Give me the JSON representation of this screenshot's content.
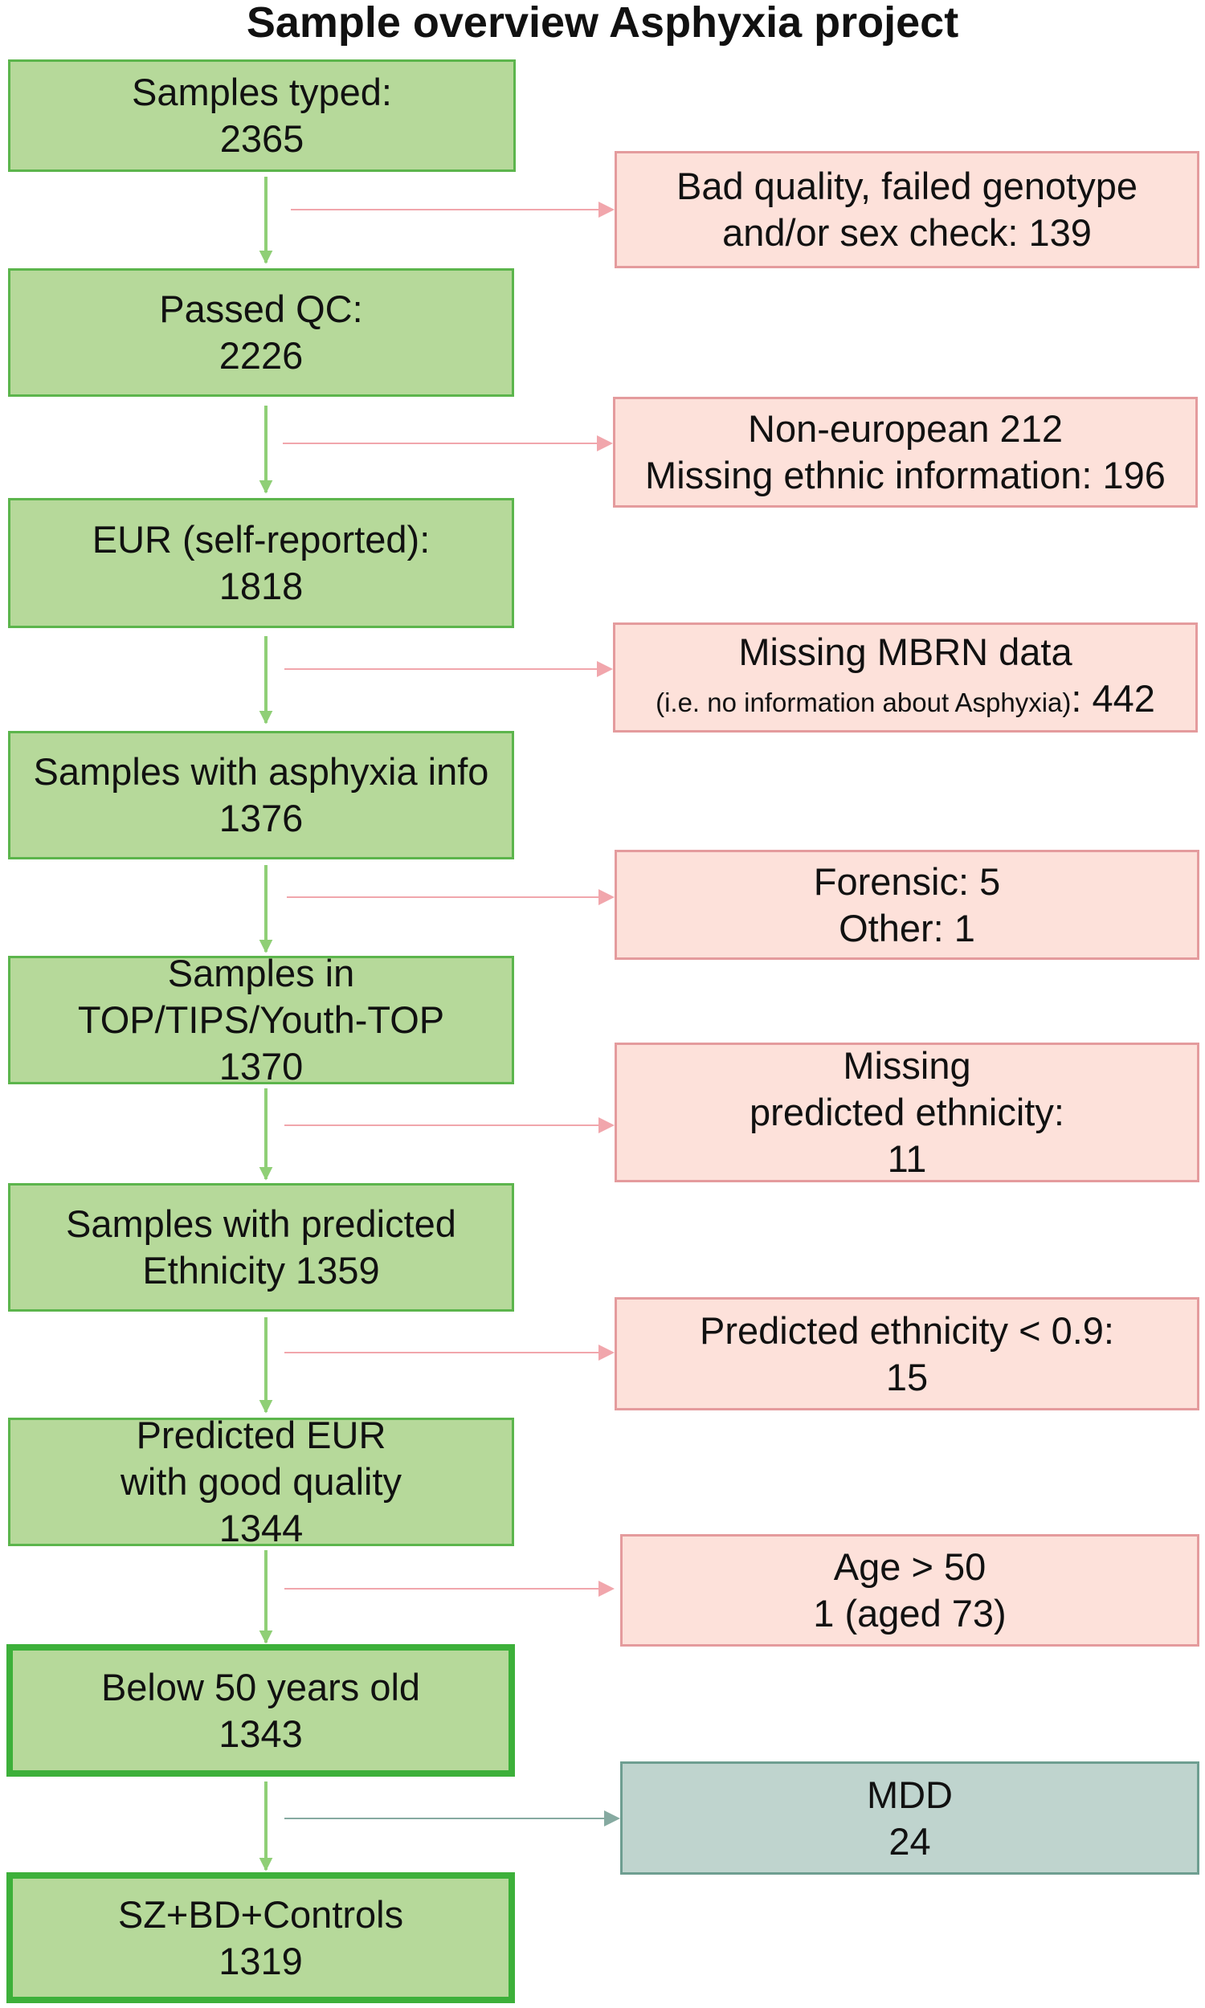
{
  "title": "Sample overview Asphyxia project",
  "flow": [
    {
      "lines": [
        "Samples typed:",
        "2365"
      ]
    },
    {
      "lines": [
        "Passed QC:",
        "2226"
      ]
    },
    {
      "lines": [
        "EUR (self-reported):",
        "1818"
      ]
    },
    {
      "lines": [
        "Samples with asphyxia info",
        "1376"
      ]
    },
    {
      "lines": [
        "Samples in",
        "TOP/TIPS/Youth-TOP",
        "1370"
      ]
    },
    {
      "lines": [
        "Samples with predicted",
        "Ethnicity 1359"
      ]
    },
    {
      "lines": [
        "Predicted EUR",
        "with good quality",
        "1344"
      ]
    },
    {
      "lines": [
        "Below 50 years old",
        "1343"
      ]
    },
    {
      "lines": [
        "SZ+BD+Controls",
        "1319"
      ]
    }
  ],
  "excluded": [
    {
      "lines": [
        "Bad quality, failed genotype",
        "and/or sex check: 139"
      ]
    },
    {
      "lines": [
        "Non-european 212",
        "Missing ethnic information: 196"
      ]
    },
    {
      "line1": "Missing MBRN data",
      "line2_small": "(i.e. no information about Asphyxia)",
      "line2_rest": ": 442"
    },
    {
      "lines": [
        "Forensic: 5",
        "Other: 1"
      ]
    },
    {
      "lines": [
        "Missing",
        "predicted ethnicity:",
        "11"
      ]
    },
    {
      "lines": [
        "Predicted ethnicity < 0.9:",
        "15"
      ]
    },
    {
      "lines": [
        "Age > 50",
        "1 (aged 73)"
      ]
    },
    {
      "lines": [
        "MDD",
        "24"
      ]
    }
  ],
  "colors": {
    "included_fill": "#b6d99a",
    "included_border": "#5cb54c",
    "excluded_fill": "#fde1da",
    "excluded_border": "#e49b9d",
    "mdd_fill": "#bfd4ce",
    "mdd_border": "#6e9e91",
    "down_arrow": "#8fcf76",
    "side_arrow": "#f1a6ac",
    "mdd_arrow": "#86aaa1"
  }
}
